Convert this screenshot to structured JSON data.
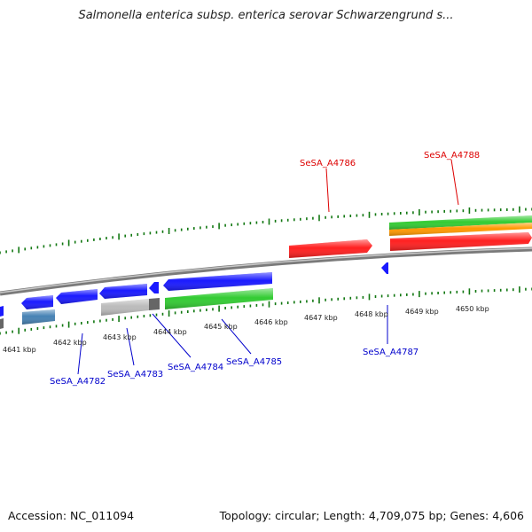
{
  "title": "Salmonella enterica subsp. enterica serovar Schwarzengrund s...",
  "footer": {
    "accession": "Accession: NC_011094",
    "summary": "Topology: circular; Length: 4,709,075 bp; Genes: 4,606"
  },
  "colors": {
    "forward_gene": "#ff2020",
    "reverse_gene": "#1a1aff",
    "rna_green": "#33cc33",
    "rna_orange": "#ff9900",
    "steel_blue": "#4682b4",
    "pseudo_gray": "#bbbbbb",
    "backbone": "#888888",
    "tick_green": "#117711",
    "forward_label": "#dd0000",
    "reverse_label": "#0000cc"
  },
  "scale_labels": [
    "4641 kbp",
    "4642 kbp",
    "4643 kbp",
    "4644 kbp",
    "4645 kbp",
    "4646 kbp",
    "4647 kbp",
    "4648 kbp",
    "4649 kbp",
    "4650 kbp"
  ],
  "gene_labels": {
    "forward": [
      "SeSA_A4786",
      "SeSA_A4788"
    ],
    "reverse": [
      "SeSA_A4782",
      "SeSA_A4783",
      "SeSA_A4784",
      "SeSA_A4785",
      "SeSA_A4787"
    ]
  }
}
